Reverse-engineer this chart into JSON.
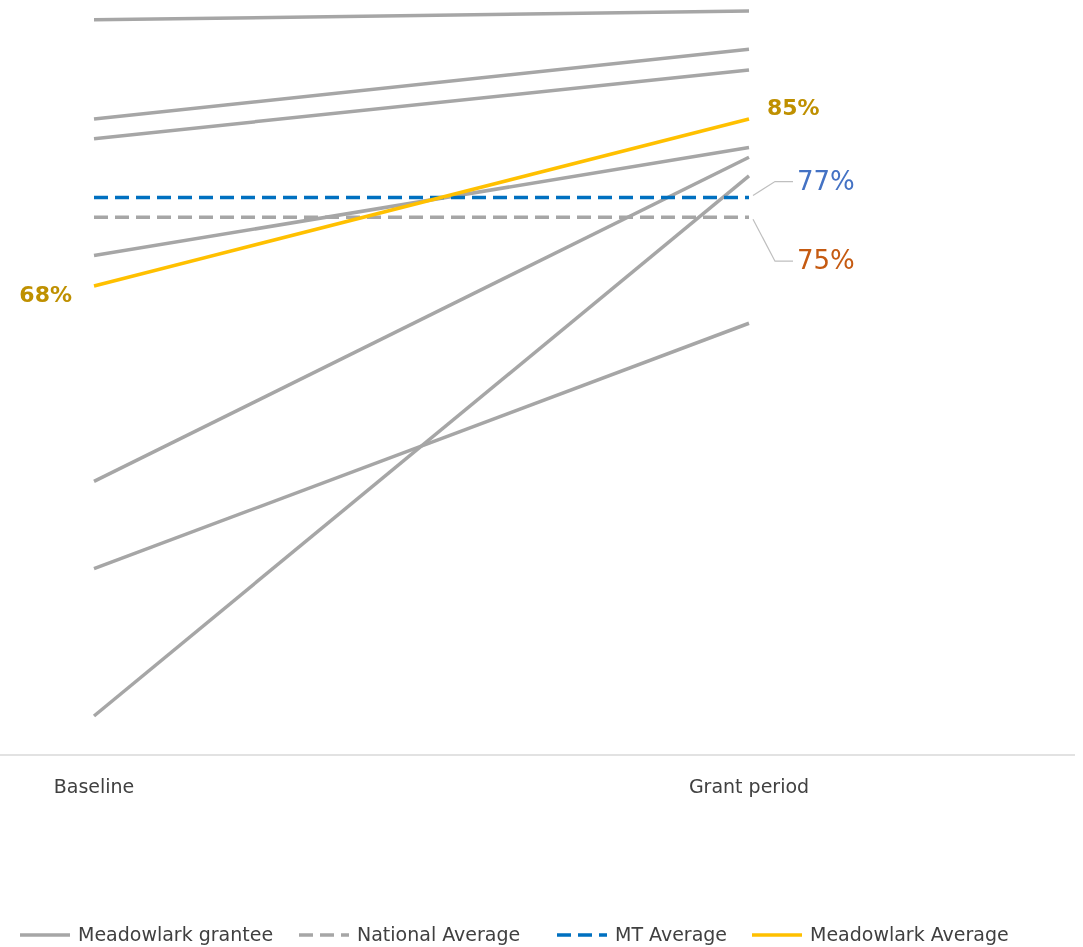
{
  "chart_data": {
    "type": "line",
    "categories": [
      "Baseline",
      "Grant period"
    ],
    "legend": "bottom",
    "series": [
      {
        "name": "Meadowlark grantee",
        "color": "#a6a6a6",
        "values": [
          95.1,
          96.0
        ]
      },
      {
        "color": "#a6a6a6",
        "values": [
          85.0,
          92.1
        ]
      },
      {
        "color": "#a6a6a6",
        "values": [
          83.0,
          90.0
        ]
      },
      {
        "color": "#a6a6a6",
        "values": [
          71.1,
          82.1
        ]
      },
      {
        "color": "#a6a6a6",
        "values": [
          48.1,
          81.1
        ]
      },
      {
        "color": "#a6a6a6",
        "values": [
          39.2,
          64.2
        ]
      },
      {
        "color": "#a6a6a6",
        "values": [
          24.2,
          79.2
        ]
      },
      {
        "name": "National Average",
        "color": "#a6a6a6",
        "line_style": "dashed",
        "values": [
          75,
          75
        ],
        "value_labels": [
          null,
          "75%"
        ]
      },
      {
        "name": "MT Average",
        "color": "#0070c0",
        "line_style": "dashed",
        "values": [
          77,
          77
        ],
        "value_labels": [
          null,
          "77%"
        ]
      },
      {
        "name": "Meadowlark Average",
        "color": "#ffc000",
        "values": [
          68,
          85
        ],
        "value_labels": [
          "68%",
          "85%"
        ]
      }
    ]
  }
}
